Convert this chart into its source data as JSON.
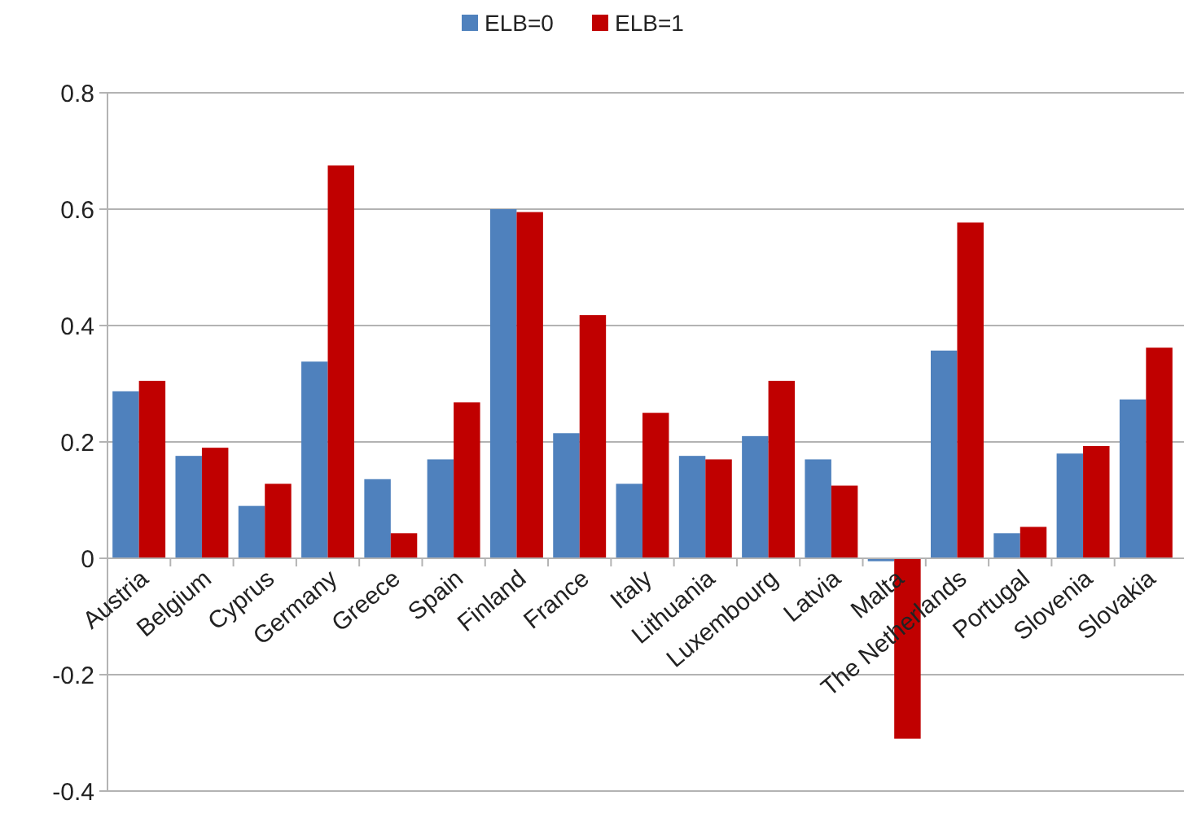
{
  "chart_data": {
    "type": "bar",
    "categories": [
      "Austria",
      "Belgium",
      "Cyprus",
      "Germany",
      "Greece",
      "Spain",
      "Finland",
      "France",
      "Italy",
      "Lithuania",
      "Luxembourg",
      "Latvia",
      "Malta",
      "The Netherlands",
      "Portugal",
      "Slovenia",
      "Slovakia"
    ],
    "series": [
      {
        "name": "ELB=0",
        "color": "#4f81bd",
        "values": [
          0.287,
          0.176,
          0.09,
          0.338,
          0.136,
          0.17,
          0.6,
          0.215,
          0.128,
          0.176,
          0.21,
          0.17,
          -0.005,
          0.357,
          0.043,
          0.18,
          0.273
        ]
      },
      {
        "name": "ELB=1",
        "color": "#c00000",
        "values": [
          0.305,
          0.19,
          0.128,
          0.675,
          0.043,
          0.268,
          0.595,
          0.418,
          0.25,
          0.17,
          0.305,
          0.125,
          -0.31,
          0.577,
          0.054,
          0.193,
          0.362
        ]
      }
    ],
    "ylim": [
      -0.4,
      0.8
    ],
    "yticks": [
      {
        "value": -0.4,
        "label": "-0.4"
      },
      {
        "value": -0.2,
        "label": "-0.2"
      },
      0,
      0.2,
      0.4,
      0.6,
      0.8
    ],
    "grid": "y",
    "legend": "top"
  }
}
